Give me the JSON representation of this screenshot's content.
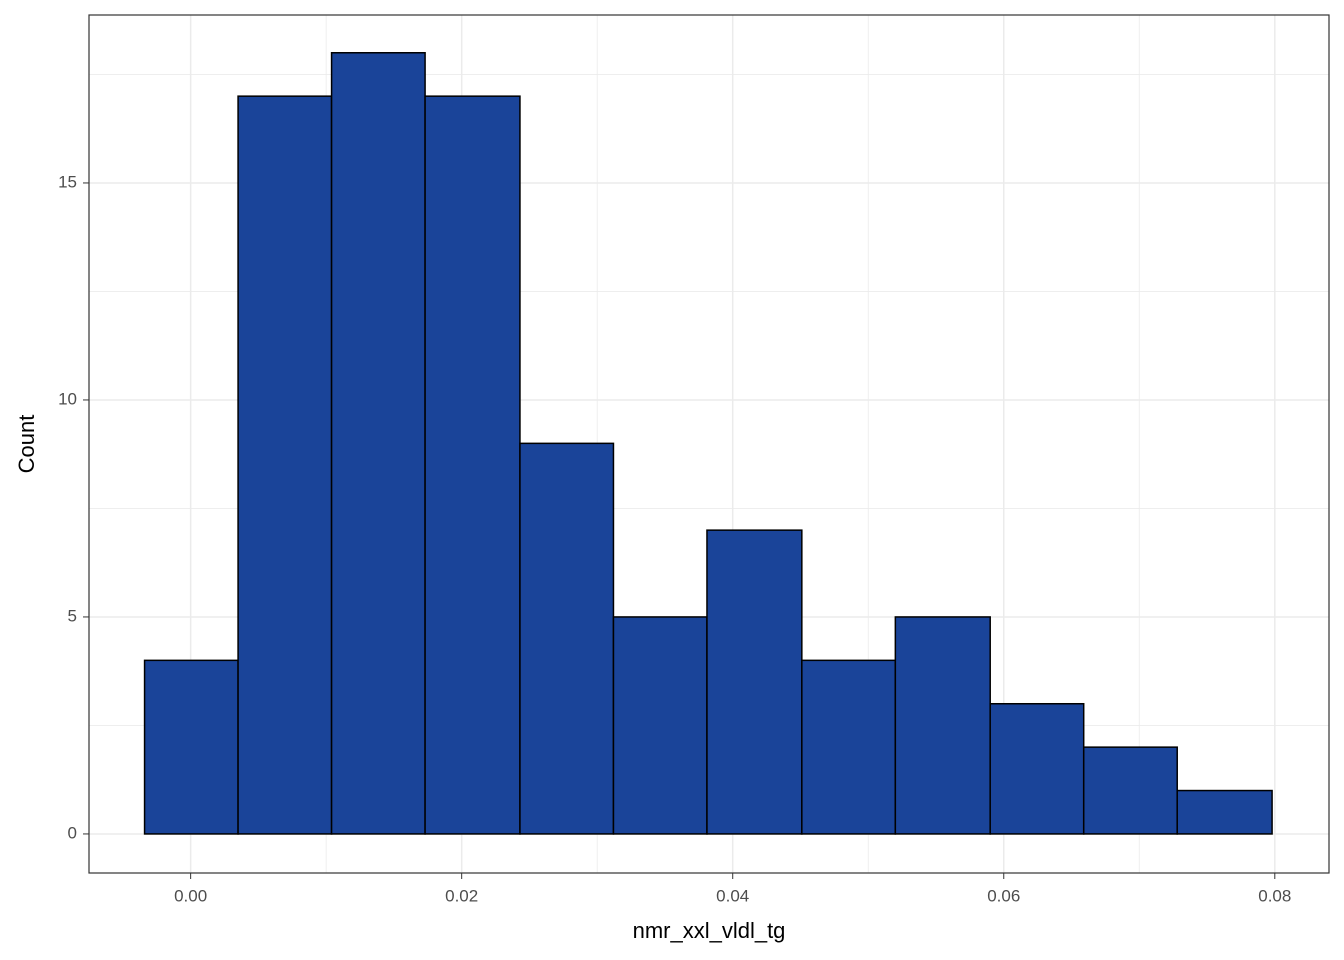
{
  "chart_data": {
    "type": "histogram",
    "x_label": "nmr_xxl_vldl_tg",
    "y_label": "Count",
    "bins": [
      -0.0034,
      0.0035,
      0.0104,
      0.0173,
      0.0243,
      0.0312,
      0.0381,
      0.0451,
      0.052,
      0.059,
      0.0659,
      0.0728,
      0.0798
    ],
    "values": [
      4,
      17,
      18,
      17,
      9,
      5,
      7,
      4,
      5,
      3,
      2,
      1
    ],
    "color": "#1a4499",
    "edge_color": "#000000",
    "xlim": [
      -0.0075,
      0.084
    ],
    "ylim": [
      -0.9,
      18.87
    ],
    "xticks": [
      {
        "value": 0,
        "label": "0.00"
      },
      0.02,
      0.04,
      0.06,
      0.08
    ],
    "yticks": [
      0,
      5,
      10,
      15
    ],
    "grid": true
  }
}
